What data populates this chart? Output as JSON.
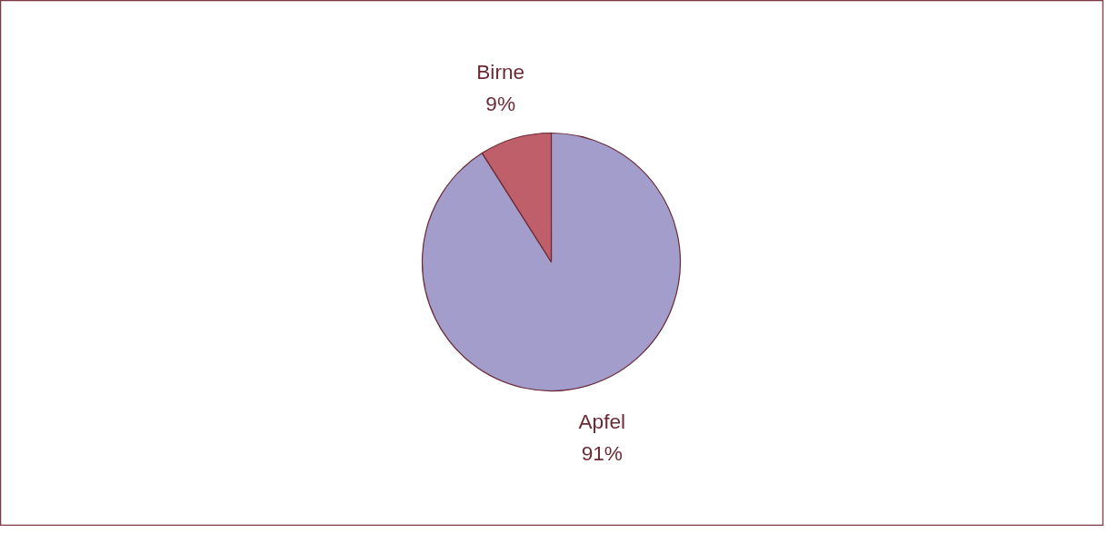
{
  "chart_data": {
    "type": "pie",
    "categories": [
      "Apfel",
      "Birne"
    ],
    "values": [
      91,
      9
    ],
    "value_labels": [
      "91%",
      "9%"
    ],
    "colors": [
      "#a29dcb",
      "#be5f69"
    ]
  }
}
